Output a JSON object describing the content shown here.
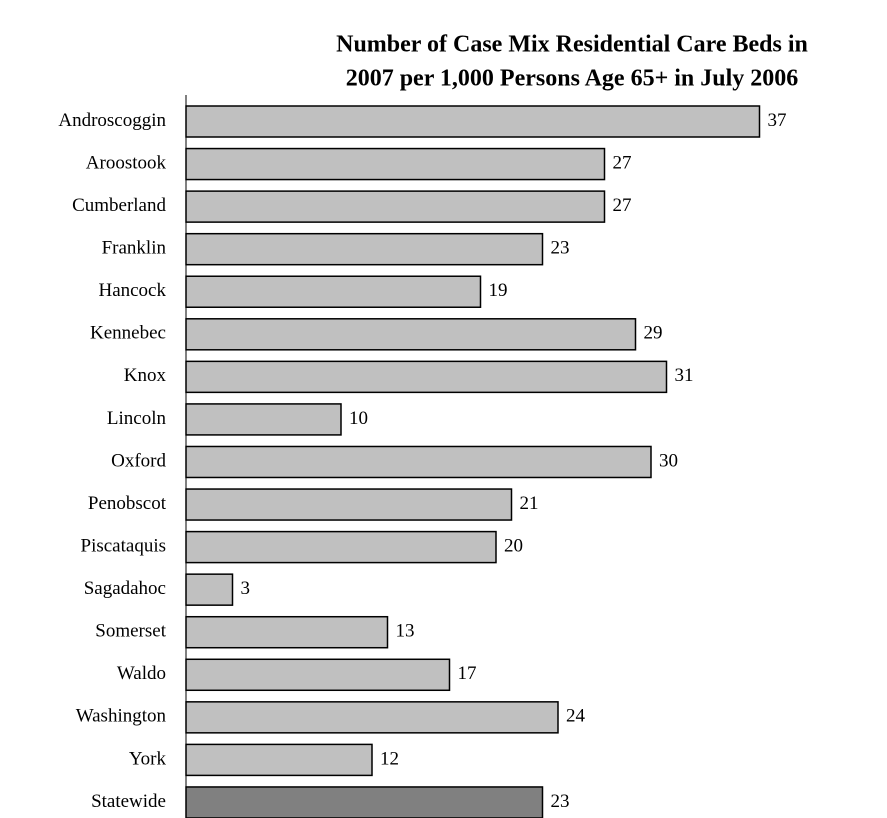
{
  "chart_data": {
    "type": "bar",
    "orientation": "horizontal",
    "title": [
      "Number of Case Mix Residential Care Beds in",
      "2007 per 1,000 Persons Age 65+ in July 2006"
    ],
    "categories": [
      "Androscoggin",
      "Aroostook",
      "Cumberland",
      "Franklin",
      "Hancock",
      "Kennebec",
      "Knox",
      "Lincoln",
      "Oxford",
      "Penobscot",
      "Piscataquis",
      "Sagadahoc",
      "Somerset",
      "Waldo",
      "Washington",
      "York",
      "Statewide"
    ],
    "values": [
      37,
      27,
      27,
      23,
      19,
      29,
      31,
      10,
      30,
      21,
      20,
      3,
      13,
      17,
      24,
      12,
      23
    ],
    "colors": [
      "#c0c0c0",
      "#c0c0c0",
      "#c0c0c0",
      "#c0c0c0",
      "#c0c0c0",
      "#c0c0c0",
      "#c0c0c0",
      "#c0c0c0",
      "#c0c0c0",
      "#c0c0c0",
      "#c0c0c0",
      "#c0c0c0",
      "#c0c0c0",
      "#c0c0c0",
      "#c0c0c0",
      "#c0c0c0",
      "#808080"
    ]
  }
}
